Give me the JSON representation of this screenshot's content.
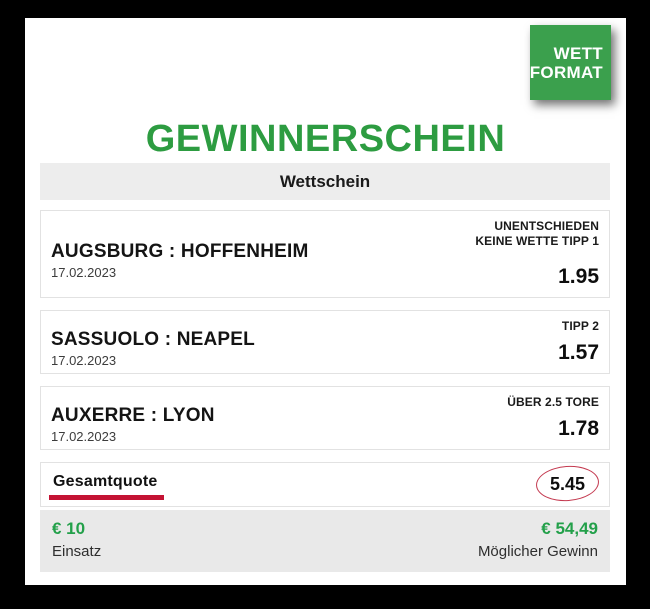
{
  "brand": {
    "badge_line1": "WETT",
    "badge_line2": "FORMAT",
    "badge_bg": "#3ba04d"
  },
  "title": "GEWINNERSCHEIN",
  "slip": {
    "header": "Wettschein",
    "bets": [
      {
        "match": "AUGSBURG : HOFFENHEIM",
        "date": "17.02.2023",
        "market": "UNENTSCHIEDEN KEINE WETTE TIPP 1",
        "odds": "1.95"
      },
      {
        "match": "SASSUOLO : NEAPEL",
        "date": "17.02.2023",
        "market": "TIPP 2",
        "odds": "1.57"
      },
      {
        "match": "AUXERRE : LYON",
        "date": "17.02.2023",
        "market": "ÜBER 2.5 TORE",
        "odds": "1.78"
      }
    ],
    "total": {
      "label": "Gesamtquote",
      "value": "5.45"
    },
    "summary": {
      "stake_amount": "€ 10",
      "stake_label": "Einsatz",
      "win_amount": "€ 54,49",
      "win_label": "Möglicher Gewinn"
    }
  },
  "colors": {
    "brand_green": "#2d9c41",
    "money_green": "#23a04a",
    "accent_red": "#c41334",
    "background": "#000000",
    "bar_gray": "#ededed"
  }
}
